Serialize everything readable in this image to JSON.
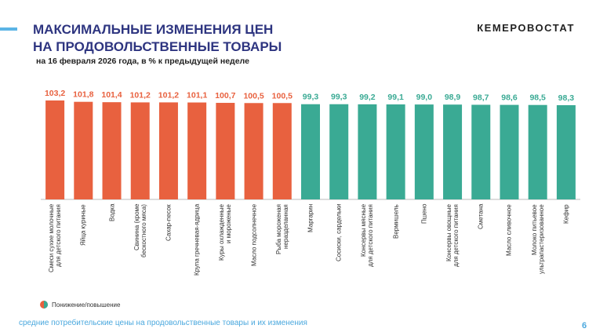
{
  "chart_data": {
    "type": "bar",
    "title": [
      "МАКСИМАЛЬНЫЕ ИЗМЕНЕНИЯ ЦЕН",
      "НА ПРОДОВОЛЬСТВЕННЫЕ ТОВАРЫ"
    ],
    "subtitle": "на 16 февраля 2026 года, в % к предыдущей неделе",
    "brand": "КЕМЕРОВОСТАТ",
    "categories": [
      "Смеси сухие молочные\nдля детского питания",
      "Яйца куриные",
      "Водка",
      "Свинина (кроме\nбескостного мяса)",
      "Сахар-песок",
      "Крупа гречневая-ядрица",
      "Куры охлажденные\nи мороженые",
      "Масло подсолнечное",
      "Рыба мороженая\nнеразделанная",
      "Маргарин",
      "Сосиски, сардельки",
      "Консервы мясные\nдля детского питания",
      "Вермишель",
      "Пшено",
      "Консервы овощные\nдля детского питания",
      "Сметана",
      "Масло сливочное",
      "Молоко питьевое\nультрапастеризованное",
      "Кефир"
    ],
    "values": [
      103.2,
      101.8,
      101.4,
      101.2,
      101.2,
      101.1,
      100.7,
      100.5,
      100.5,
      99.3,
      99.3,
      99.2,
      99.1,
      99.0,
      98.9,
      98.7,
      98.6,
      98.5,
      98.3
    ],
    "value_labels": [
      "103,2",
      "101,8",
      "101,4",
      "101,2",
      "101,2",
      "101,1",
      "100,7",
      "100,5",
      "100,5",
      "99,3",
      "99,3",
      "99,2",
      "99,1",
      "99,0",
      "98,9",
      "98,7",
      "98,6",
      "98,5",
      "98,3"
    ],
    "colors": [
      "#e8613f",
      "#e8613f",
      "#e8613f",
      "#e8613f",
      "#e8613f",
      "#e8613f",
      "#e8613f",
      "#e8613f",
      "#e8613f",
      "#3aaa94",
      "#3aaa94",
      "#3aaa94",
      "#3aaa94",
      "#3aaa94",
      "#3aaa94",
      "#3aaa94",
      "#3aaa94",
      "#3aaa94",
      "#3aaa94"
    ],
    "ylim": [
      0,
      104
    ],
    "legend_label": "Понижение/повышение",
    "footer": "средние потребительские цены на продовольственные товары и их изменения",
    "page_number": 6
  }
}
